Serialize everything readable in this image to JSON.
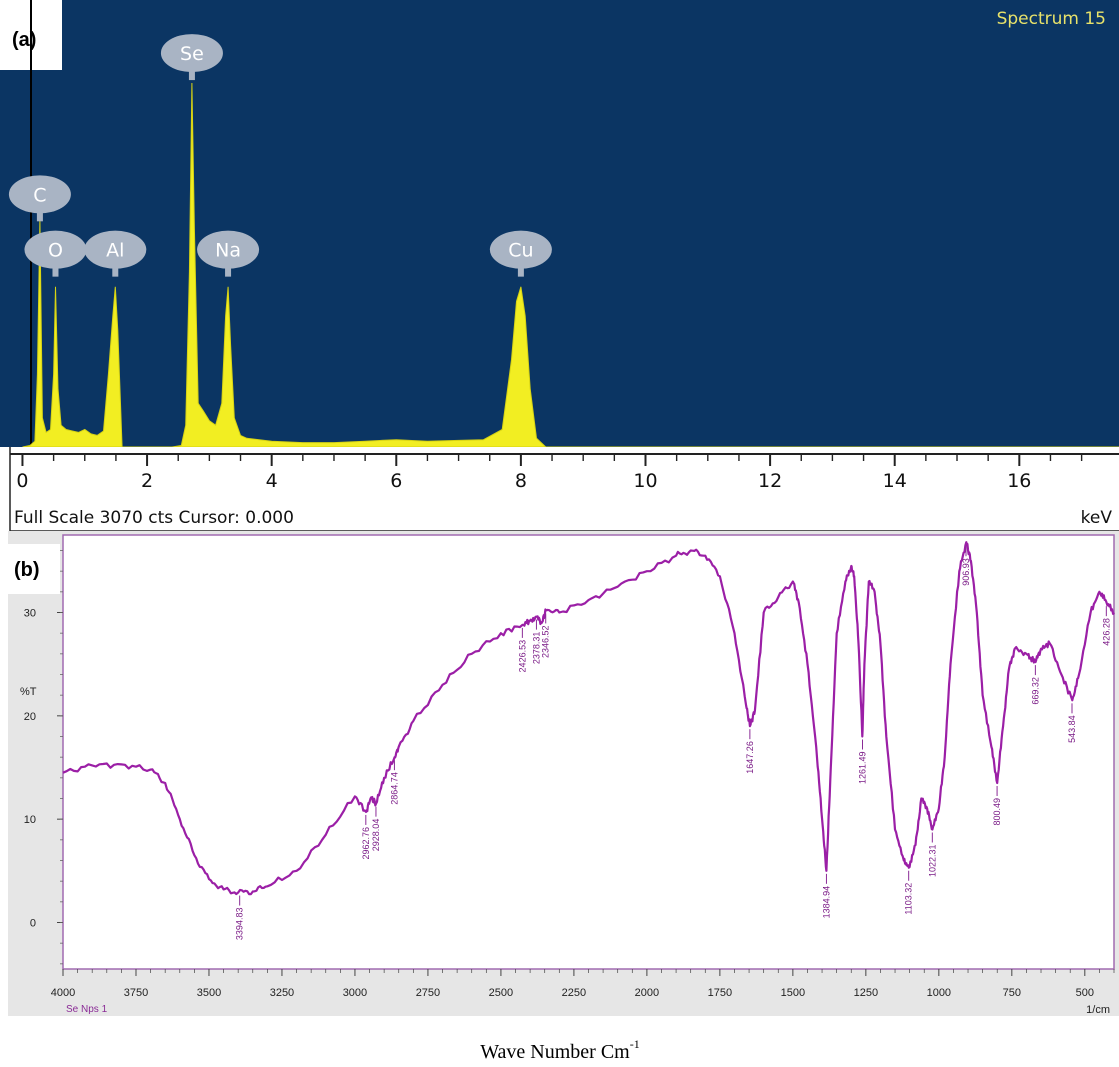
{
  "panels": {
    "a_label": "(a)",
    "b_label": "(b)"
  },
  "chart_data": [
    {
      "type": "area",
      "title": "Spectrum 15",
      "footer": "Full Scale 3070 cts Cursor: 0.000",
      "xunit": "keV",
      "xlim": [
        -0.2,
        17.6
      ],
      "ylim": [
        0,
        3070
      ],
      "x_ticks": [
        "0",
        "2",
        "4",
        "6",
        "8",
        "10",
        "12",
        "14",
        "16"
      ],
      "x_tick_values": [
        0,
        2,
        4,
        6,
        8,
        10,
        12,
        14,
        16
      ],
      "colors": {
        "background": "#0b3563",
        "fill": "#f2ee22",
        "badge": "#a9b4c4"
      },
      "peaks": [
        {
          "element": "C",
          "x": 0.28,
          "y": 1550
        },
        {
          "element": "O",
          "x": 0.53,
          "y": 1170
        },
        {
          "element": "Al",
          "x": 1.49,
          "y": 1170
        },
        {
          "element": "Se",
          "x": 2.72,
          "y": 2520
        },
        {
          "element": "Na",
          "x": 3.3,
          "y": 1170
        },
        {
          "element": "Cu",
          "x": 8.0,
          "y": 1170
        }
      ],
      "spectrum": {
        "x": [
          0.0,
          0.12,
          0.2,
          0.24,
          0.28,
          0.32,
          0.38,
          0.45,
          0.5,
          0.53,
          0.57,
          0.62,
          0.7,
          0.8,
          0.9,
          1.0,
          1.1,
          1.2,
          1.3,
          1.38,
          1.45,
          1.49,
          1.53,
          1.6,
          1.7,
          1.8,
          2.0,
          2.2,
          2.4,
          2.55,
          2.62,
          2.68,
          2.72,
          2.76,
          2.82,
          2.9,
          3.0,
          3.1,
          3.2,
          3.26,
          3.3,
          3.34,
          3.4,
          3.5,
          3.6,
          3.8,
          4.0,
          4.5,
          5.0,
          5.5,
          6.0,
          6.5,
          7.0,
          7.4,
          7.7,
          7.85,
          7.93,
          8.0,
          8.07,
          8.15,
          8.25,
          8.4,
          9.0,
          17.6
        ],
        "y": [
          0,
          10,
          40,
          500,
          1560,
          200,
          100,
          120,
          500,
          1100,
          400,
          150,
          120,
          110,
          100,
          120,
          90,
          80,
          110,
          500,
          900,
          1100,
          800,
          0,
          0,
          0,
          0,
          0,
          0,
          10,
          150,
          1200,
          2500,
          1500,
          300,
          250,
          180,
          150,
          300,
          900,
          1100,
          700,
          200,
          80,
          60,
          50,
          40,
          30,
          30,
          40,
          50,
          40,
          45,
          50,
          120,
          600,
          1000,
          1100,
          900,
          400,
          60,
          0,
          0,
          0
        ]
      }
    },
    {
      "type": "line",
      "title": "",
      "xlabel": "Wave Number Cm",
      "xlabel_sup": "-1",
      "ylabel": "%T",
      "x_unit_label": "1/cm",
      "sample_label": "Se Nps 1",
      "xlim": [
        4000,
        400
      ],
      "ylim": [
        -4.5,
        37.5
      ],
      "x_ticks": [
        "4000",
        "3750",
        "3500",
        "3250",
        "3000",
        "2750",
        "2500",
        "2250",
        "2000",
        "1750",
        "1500",
        "1250",
        "1000",
        "750",
        "500"
      ],
      "x_tick_values": [
        4000,
        3750,
        3500,
        3250,
        3000,
        2750,
        2500,
        2250,
        2000,
        1750,
        1500,
        1250,
        1000,
        750,
        500
      ],
      "y_ticks": [
        "0",
        "10",
        "20",
        "30"
      ],
      "y_tick_values": [
        0,
        10,
        20,
        30
      ],
      "colors": {
        "line": "#9b1fa6",
        "frame": "#a06ab0",
        "axis_bg": "#e6e6e6"
      },
      "series": [
        {
          "x": [
            4000,
            3900,
            3800,
            3700,
            3650,
            3600,
            3550,
            3500,
            3450,
            3400,
            3350,
            3300,
            3200,
            3100,
            3000,
            2962,
            2945,
            2928,
            2900,
            2864,
            2850,
            2800,
            2700,
            2600,
            2500,
            2426,
            2400,
            2379,
            2360,
            2346,
            2300,
            2200,
            2100,
            2000,
            1900,
            1850,
            1800,
            1750,
            1700,
            1660,
            1647,
            1630,
            1600,
            1550,
            1500,
            1480,
            1450,
            1420,
            1400,
            1385,
            1370,
            1350,
            1320,
            1300,
            1290,
            1275,
            1262,
            1255,
            1240,
            1220,
            1200,
            1180,
            1150,
            1120,
            1103,
            1080,
            1060,
            1040,
            1022,
            1000,
            980,
            960,
            930,
            906,
            890,
            870,
            850,
            820,
            800,
            780,
            760,
            740,
            700,
            680,
            669,
            650,
            620,
            580,
            543,
            520,
            480,
            450,
            426,
            400
          ],
          "y": [
            14.5,
            15.2,
            15.3,
            14.8,
            13.5,
            10,
            6.5,
            4.2,
            3.2,
            2.9,
            3.0,
            3.5,
            5.0,
            8.5,
            12.2,
            10.7,
            12.1,
            11.5,
            14.0,
            16.0,
            17.0,
            19.5,
            23.0,
            26.0,
            28.0,
            28.8,
            29.2,
            29.6,
            29.0,
            30.2,
            30.0,
            31.2,
            32.5,
            34.0,
            35.5,
            36.0,
            35.5,
            33.5,
            28.0,
            21.0,
            19.0,
            20.5,
            30.0,
            31.5,
            33.0,
            31.0,
            25.0,
            17.0,
            10.0,
            5.0,
            15.0,
            28.0,
            33.0,
            34.5,
            33.5,
            27.0,
            18.0,
            25.0,
            33.0,
            32.0,
            27.0,
            18.0,
            9.0,
            6.0,
            5.3,
            7.5,
            12.0,
            11.0,
            9.0,
            11.0,
            16.0,
            25.0,
            34.0,
            36.8,
            35.0,
            30.0,
            22.0,
            17.0,
            13.5,
            19.0,
            24.5,
            26.5,
            26.0,
            25.5,
            25.2,
            26.5,
            27.0,
            24.0,
            21.5,
            24.0,
            30.0,
            32.0,
            31.0,
            30.0
          ]
        }
      ],
      "annotations": [
        {
          "label": "3394.83",
          "x": 3394.83,
          "y": 2.9
        },
        {
          "label": "2962.76",
          "x": 2962.76,
          "y": 10.7
        },
        {
          "label": "2928.04",
          "x": 2928.04,
          "y": 11.5
        },
        {
          "label": "2864.74",
          "x": 2864.74,
          "y": 16.0
        },
        {
          "label": "2426.53",
          "x": 2426.53,
          "y": 28.8
        },
        {
          "label": "2378.31",
          "x": 2378.31,
          "y": 29.6
        },
        {
          "label": "2346.52",
          "x": 2346.52,
          "y": 30.2
        },
        {
          "label": "1647.26",
          "x": 1647.26,
          "y": 19.0
        },
        {
          "label": "1384.94",
          "x": 1384.94,
          "y": 5.0
        },
        {
          "label": "1261.49",
          "x": 1261.49,
          "y": 18.0
        },
        {
          "label": "1103.32",
          "x": 1103.32,
          "y": 5.3
        },
        {
          "label": "1022.31",
          "x": 1022.31,
          "y": 9.0
        },
        {
          "label": "906.93",
          "x": 906.93,
          "y": 36.8
        },
        {
          "label": "800.49",
          "x": 800.49,
          "y": 13.5
        },
        {
          "label": "669.32",
          "x": 669.32,
          "y": 25.2
        },
        {
          "label": "543.84",
          "x": 543.84,
          "y": 21.5
        },
        {
          "label": "426.28",
          "x": 426.28,
          "y": 31.0
        }
      ]
    }
  ]
}
